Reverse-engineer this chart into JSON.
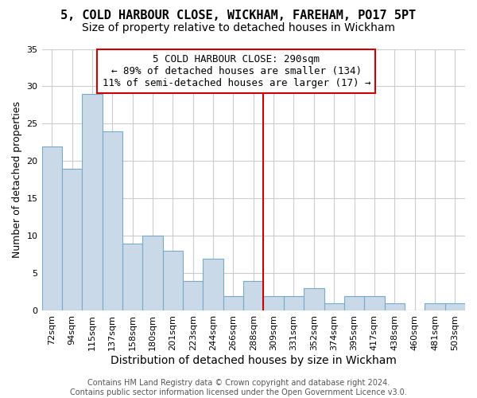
{
  "title": "5, COLD HARBOUR CLOSE, WICKHAM, FAREHAM, PO17 5PT",
  "subtitle": "Size of property relative to detached houses in Wickham",
  "xlabel": "Distribution of detached houses by size in Wickham",
  "ylabel": "Number of detached properties",
  "bin_labels": [
    "72sqm",
    "94sqm",
    "115sqm",
    "137sqm",
    "158sqm",
    "180sqm",
    "201sqm",
    "223sqm",
    "244sqm",
    "266sqm",
    "288sqm",
    "309sqm",
    "331sqm",
    "352sqm",
    "374sqm",
    "395sqm",
    "417sqm",
    "438sqm",
    "460sqm",
    "481sqm",
    "503sqm"
  ],
  "bar_heights": [
    22,
    19,
    29,
    24,
    9,
    10,
    8,
    4,
    7,
    2,
    4,
    2,
    2,
    3,
    1,
    2,
    2,
    1,
    0,
    1,
    1
  ],
  "bar_color": "#c9d9e8",
  "bar_edge_color": "#7aaac8",
  "vline_pos": 10.5,
  "vline_color": "#cc0000",
  "annotation_line1": "5 COLD HARBOUR CLOSE: 290sqm",
  "annotation_line2": "← 89% of detached houses are smaller (134)",
  "annotation_line3": "11% of semi-detached houses are larger (17) →",
  "annotation_box_edge_color": "#cc0000",
  "ylim": [
    0,
    35
  ],
  "yticks": [
    0,
    5,
    10,
    15,
    20,
    25,
    30,
    35
  ],
  "grid_color": "#cccccc",
  "background_color": "#ffffff",
  "footer_line1": "Contains HM Land Registry data © Crown copyright and database right 2024.",
  "footer_line2": "Contains public sector information licensed under the Open Government Licence v3.0.",
  "title_fontsize": 11,
  "subtitle_fontsize": 10,
  "xlabel_fontsize": 10,
  "ylabel_fontsize": 9,
  "tick_fontsize": 8,
  "annotation_fontsize": 9,
  "footer_fontsize": 7
}
